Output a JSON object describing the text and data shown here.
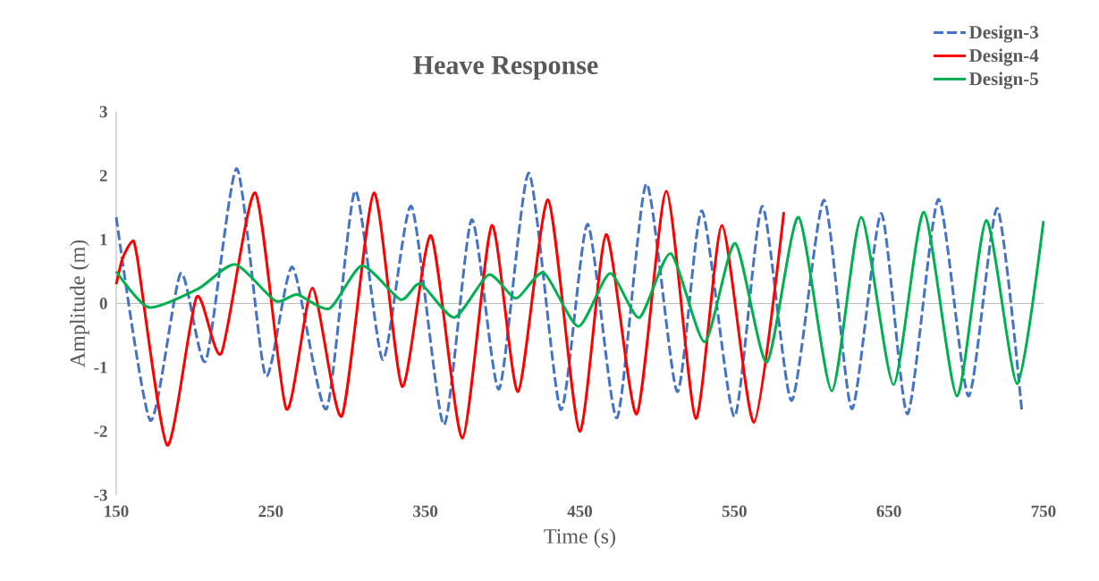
{
  "chart_data": {
    "type": "line",
    "title": "Heave Response",
    "xlabel": "Time (s)",
    "ylabel": "Amplitude (m)",
    "xlim": [
      150,
      750
    ],
    "xticks": [
      150,
      250,
      350,
      450,
      550,
      650,
      750
    ],
    "ylim": [
      -3,
      3
    ],
    "yticks": [
      -3,
      -2,
      -1,
      0,
      1,
      2,
      3
    ],
    "legend": "top right",
    "marker": "none",
    "series": [
      {
        "name": "Design-3",
        "color": "#4472c4",
        "line_style": "dashed",
        "x": [
          150,
          172,
          191.7,
          207.9,
          228,
          246.6,
          264,
          286,
          304.5,
          322.5,
          341,
          362,
          380,
          397.7,
          417,
          437.6,
          455,
          474,
          493,
          513,
          529,
          550,
          568,
          587,
          608,
          626,
          645,
          662,
          682,
          701.5,
          720,
          736
        ],
        "values": [
          1.35,
          -1.83,
          0.47,
          -0.9,
          2.11,
          -1.13,
          0.57,
          -1.65,
          1.76,
          -0.88,
          1.52,
          -1.9,
          1.31,
          -1.34,
          2.04,
          -1.66,
          1.24,
          -1.79,
          1.87,
          -1.38,
          1.45,
          -1.77,
          1.52,
          -1.52,
          1.62,
          -1.65,
          1.41,
          -1.73,
          1.63,
          -1.45,
          1.49,
          -1.69
        ]
      },
      {
        "name": "Design-4",
        "color": "#ff0000",
        "line_style": "solid",
        "x": [
          150,
          154,
          160,
          163.5,
          183,
          202,
          218,
          240,
          260,
          277,
          296,
          316.7,
          335,
          353.7,
          374,
          393,
          410,
          429.5,
          449.8,
          467,
          486.8,
          506,
          525,
          542,
          562.6,
          582
        ],
        "values": [
          0.3,
          0.7,
          0.96,
          0.73,
          -2.22,
          0.1,
          -0.78,
          1.73,
          -1.65,
          0.24,
          -1.76,
          1.73,
          -1.3,
          1.06,
          -2.11,
          1.22,
          -1.38,
          1.62,
          -2.0,
          1.08,
          -1.73,
          1.76,
          -1.8,
          1.22,
          -1.86,
          1.43
        ]
      },
      {
        "name": "Design-5",
        "color": "#00b050",
        "line_style": "solid",
        "x": [
          150,
          171,
          203,
          227,
          253,
          267,
          288,
          309,
          334,
          346.8,
          368.8,
          391,
          408.7,
          426.6,
          449,
          469.4,
          488.5,
          508.8,
          530.8,
          550.5,
          571,
          591.5,
          613,
          632,
          653,
          672.6,
          694,
          713,
          733,
          750
        ],
        "values": [
          0.5,
          -0.06,
          0.23,
          0.61,
          0.04,
          0.14,
          -0.08,
          0.59,
          0.06,
          0.31,
          -0.22,
          0.45,
          0.08,
          0.48,
          -0.36,
          0.47,
          -0.22,
          0.78,
          -0.6,
          0.94,
          -0.92,
          1.35,
          -1.37,
          1.35,
          -1.27,
          1.43,
          -1.45,
          1.3,
          -1.26,
          1.29
        ]
      }
    ]
  }
}
